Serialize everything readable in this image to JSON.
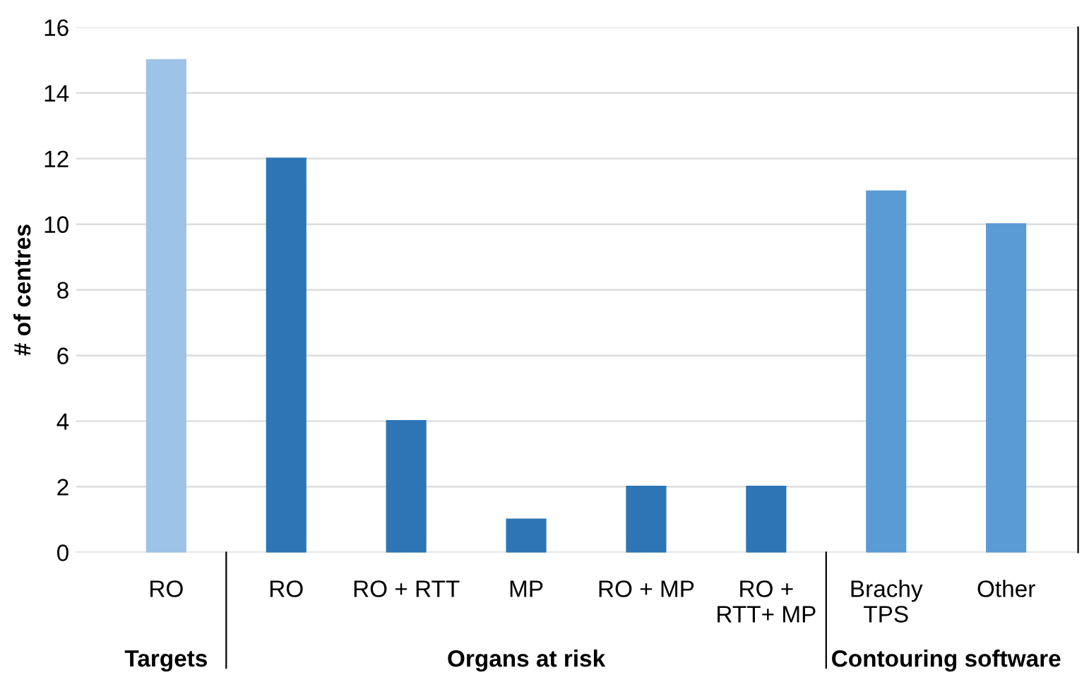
{
  "chart_data": {
    "type": "bar",
    "ylabel": "# of centres",
    "categories": [
      "RO",
      "RO",
      "RO + RTT",
      "MP",
      "RO + MP",
      "RO +\nRTT+ MP",
      "Brachy\nTPS",
      "Other"
    ],
    "values": [
      15,
      12,
      4,
      1,
      2,
      2,
      11,
      10
    ],
    "colors": [
      "#9dc3e6",
      "#2e75b6",
      "#2e75b6",
      "#2e75b6",
      "#2e75b6",
      "#2e75b6",
      "#5b9bd5",
      "#5b9bd5"
    ],
    "ylim": [
      0,
      16
    ],
    "yticks": [
      0,
      2,
      4,
      6,
      8,
      10,
      12,
      14,
      16
    ],
    "grid": "y",
    "annotations": [
      "Targets",
      "Organs at risk",
      "Contouring software"
    ]
  }
}
